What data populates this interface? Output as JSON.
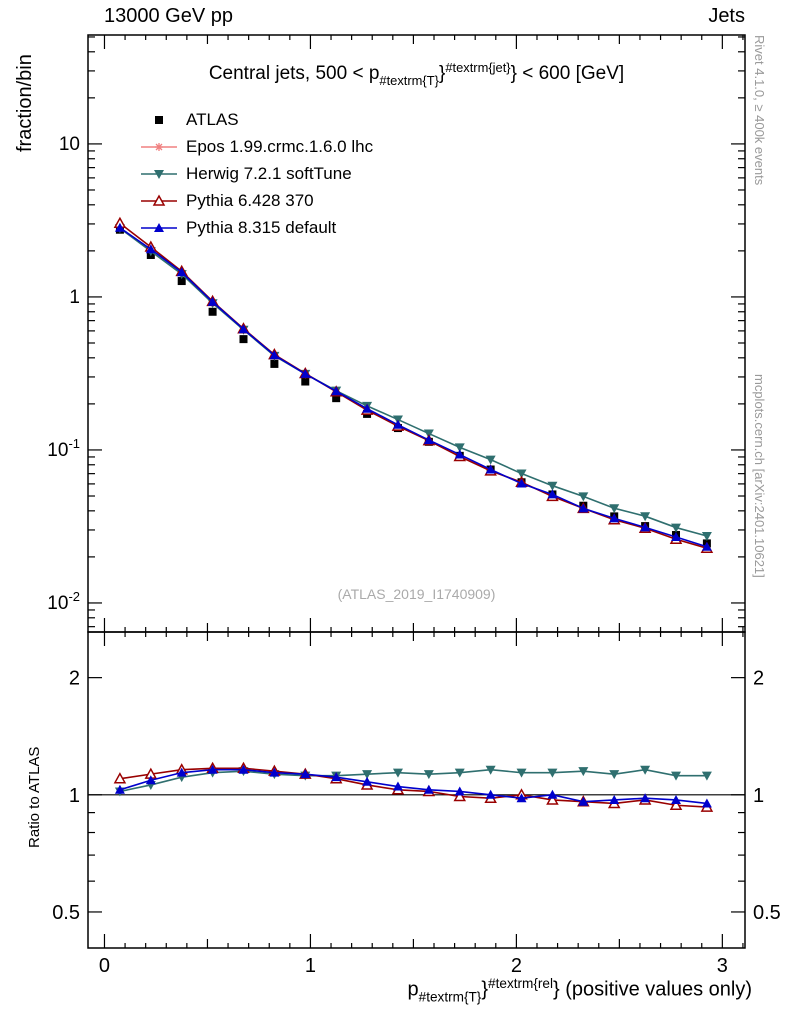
{
  "header": {
    "left": "13000 GeV pp",
    "right": "Jets"
  },
  "side_notes": {
    "top": "Rivet 4.1.0, ≥ 400k events",
    "bottom": "mcplots.cern.ch [arXiv:2401.10621]"
  },
  "watermark": "(ATLAS_2019_I1740909)",
  "title": {
    "pre": "Central jets, 500 < p",
    "sub": "#textrm{T}",
    "mid": "}",
    "sup": "#textrm{jet}",
    "post": "} < 600 [GeV]"
  },
  "axes": {
    "y_main_label": "fraction/bin",
    "y_ratio_label": "Ratio to ATLAS",
    "x_label": {
      "pre": "p",
      "sub": "#textrm{T}",
      "mid": "}",
      "sup": "#textrm{rel",
      "post": "} (positive values only)"
    },
    "x_range": [
      -0.08,
      3.11
    ],
    "x_major_ticks": [
      0,
      1,
      2,
      3
    ],
    "y_main_range": [
      0.00646,
      51.5
    ],
    "y_main_ticks": [
      {
        "value": 0.01,
        "label": "10",
        "exp": "-2"
      },
      {
        "value": 0.1,
        "label": "10",
        "exp": "-1"
      },
      {
        "value": 1,
        "label": "1",
        "exp": ""
      },
      {
        "value": 10,
        "label": "10",
        "exp": ""
      }
    ],
    "y_ratio_range": [
      0.404,
      2.62
    ],
    "y_ratio_ticks": [
      {
        "value": 0.5,
        "label": "0.5"
      },
      {
        "value": 1,
        "label": "1"
      },
      {
        "value": 2,
        "label": "2"
      }
    ],
    "y_ratio_minor": [
      0.6,
      0.7,
      0.8,
      0.9
    ]
  },
  "chart_data": [
    {
      "type": "line",
      "title": "Central jets, 500 < pT^jet < 600 [GeV], fraction/bin vs pT^rel",
      "yscale": "log",
      "x": [
        0.075,
        0.225,
        0.375,
        0.525,
        0.675,
        0.825,
        0.975,
        1.125,
        1.275,
        1.425,
        1.575,
        1.725,
        1.875,
        2.025,
        2.175,
        2.325,
        2.475,
        2.625,
        2.775,
        2.925
      ],
      "series": [
        {
          "name": "ATLAS",
          "color": "#000000",
          "marker": "square-filled",
          "line": false,
          "values": [
            2.75,
            1.88,
            1.27,
            0.8,
            0.53,
            0.365,
            0.28,
            0.218,
            0.172,
            0.139,
            0.113,
            0.0915,
            0.0745,
            0.0615,
            0.0512,
            0.0432,
            0.0368,
            0.0318,
            0.0278,
            0.0245
          ]
        },
        {
          "name": "Epos 1.99.crmc.1.6.0 lhc",
          "color": "#f08080",
          "marker": "cross-open",
          "line": true,
          "values": []
        },
        {
          "name": "Herwig 7.2.1 softTune",
          "color": "#2f6f6f",
          "marker": "triangle-down-filled",
          "line": true,
          "values": [
            2.81,
            1.99,
            1.41,
            0.91,
            0.61,
            0.412,
            0.314,
            0.244,
            0.194,
            0.158,
            0.128,
            0.104,
            0.0864,
            0.0701,
            0.0584,
            0.0497,
            0.0416,
            0.0369,
            0.0311,
            0.0274
          ]
        },
        {
          "name": "Pythia 6.428 370",
          "color": "#990000",
          "marker": "triangle-up-open",
          "line": true,
          "values": [
            3.03,
            2.12,
            1.47,
            0.936,
            0.62,
            0.42,
            0.316,
            0.24,
            0.182,
            0.143,
            0.115,
            0.0906,
            0.073,
            0.0615,
            0.0497,
            0.0415,
            0.035,
            0.0308,
            0.0261,
            0.0228
          ]
        },
        {
          "name": "Pythia 8.315 default",
          "color": "#0000cc",
          "marker": "triangle-up-filled",
          "line": true,
          "values": [
            2.83,
            2.05,
            1.45,
            0.928,
            0.615,
            0.416,
            0.314,
            0.242,
            0.186,
            0.146,
            0.116,
            0.0933,
            0.0745,
            0.0603,
            0.0512,
            0.0415,
            0.0357,
            0.0312,
            0.027,
            0.0233
          ]
        }
      ]
    },
    {
      "type": "line",
      "title": "Ratio to ATLAS",
      "yscale": "log",
      "reference_line": 1,
      "x": [
        0.075,
        0.225,
        0.375,
        0.525,
        0.675,
        0.825,
        0.975,
        1.125,
        1.275,
        1.425,
        1.575,
        1.725,
        1.875,
        2.025,
        2.175,
        2.325,
        2.475,
        2.625,
        2.775,
        2.925
      ],
      "series": [
        {
          "name": "Epos 1.99.crmc.1.6.0 lhc",
          "color": "#f08080",
          "marker": "cross-open",
          "line": true,
          "values": []
        },
        {
          "name": "Herwig 7.2.1 softTune",
          "color": "#2f6f6f",
          "marker": "triangle-down-filled",
          "line": true,
          "values": [
            1.02,
            1.06,
            1.11,
            1.14,
            1.15,
            1.13,
            1.12,
            1.12,
            1.13,
            1.14,
            1.13,
            1.14,
            1.16,
            1.14,
            1.14,
            1.15,
            1.13,
            1.16,
            1.12,
            1.12
          ]
        },
        {
          "name": "Pythia 6.428 370",
          "color": "#990000",
          "marker": "triangle-up-open",
          "line": true,
          "values": [
            1.1,
            1.13,
            1.16,
            1.17,
            1.17,
            1.15,
            1.13,
            1.1,
            1.06,
            1.03,
            1.02,
            0.99,
            0.98,
            1.0,
            0.97,
            0.96,
            0.95,
            0.97,
            0.94,
            0.93
          ]
        },
        {
          "name": "Pythia 8.315 default",
          "color": "#0000cc",
          "marker": "triangle-up-filled",
          "line": true,
          "values": [
            1.03,
            1.09,
            1.14,
            1.16,
            1.16,
            1.14,
            1.13,
            1.11,
            1.08,
            1.05,
            1.03,
            1.02,
            1.0,
            0.98,
            1.0,
            0.96,
            0.97,
            0.98,
            0.97,
            0.95
          ]
        }
      ]
    }
  ]
}
